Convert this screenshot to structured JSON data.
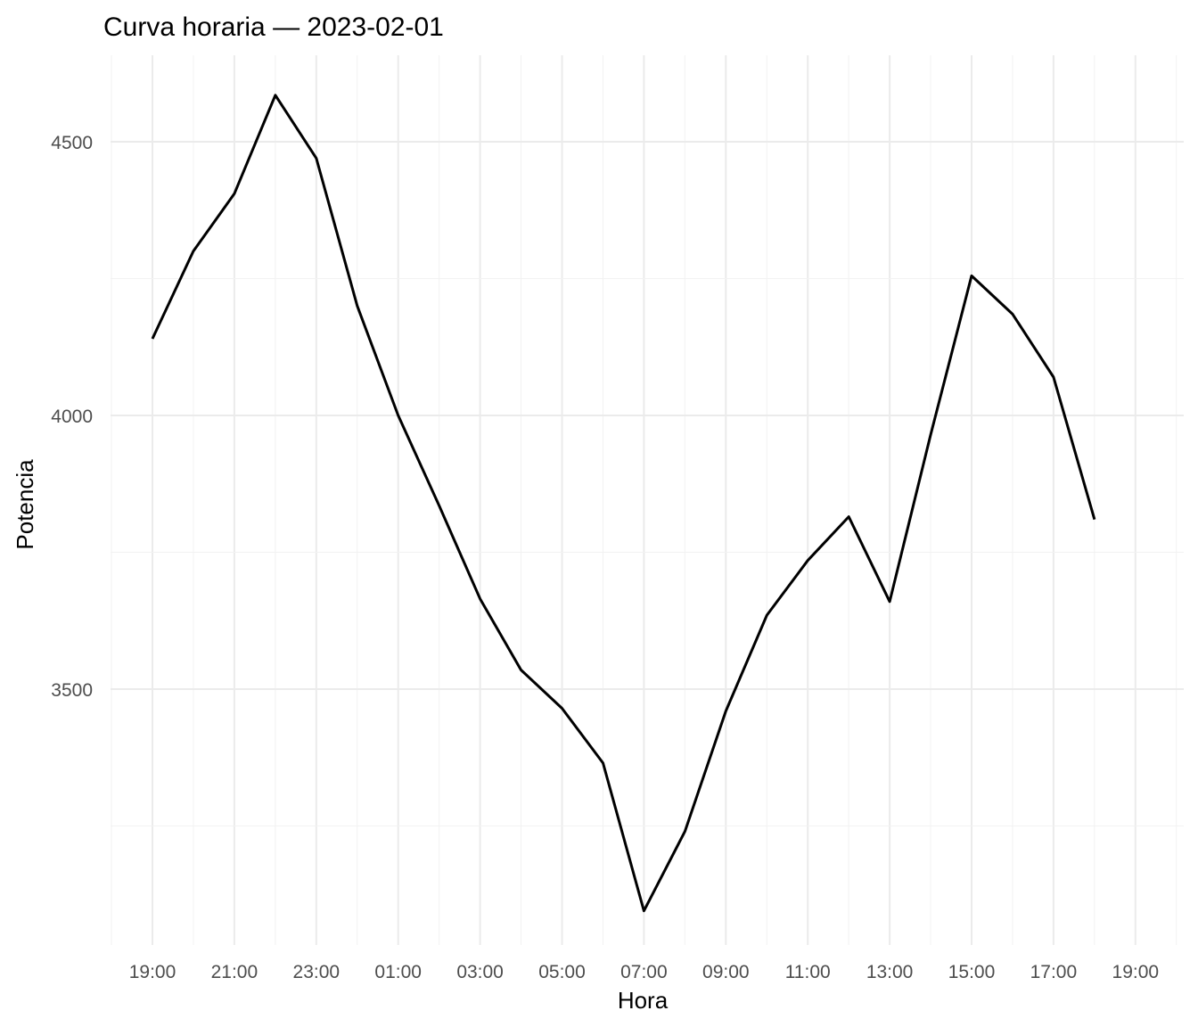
{
  "chart_data": {
    "type": "line",
    "title": "Curva horaria — 2023-02-01",
    "xlabel": "Hora",
    "ylabel": "Potencia",
    "x": [
      "19:00",
      "20:00",
      "21:00",
      "22:00",
      "23:00",
      "00:00",
      "01:00",
      "02:00",
      "03:00",
      "04:00",
      "05:00",
      "06:00",
      "07:00",
      "08:00",
      "09:00",
      "10:00",
      "11:00",
      "12:00",
      "13:00",
      "14:00",
      "15:00",
      "16:00",
      "17:00",
      "18:00"
    ],
    "x_ticks": [
      "19:00",
      "21:00",
      "23:00",
      "01:00",
      "03:00",
      "05:00",
      "07:00",
      "09:00",
      "11:00",
      "13:00",
      "15:00",
      "17:00",
      "19:00"
    ],
    "y_ticks": [
      3500,
      4000,
      4500
    ],
    "ylim": [
      3140,
      4660
    ],
    "grid": true,
    "series": [
      {
        "values": [
          4140,
          4300,
          4405,
          4585,
          4470,
          4200,
          4000,
          3835,
          3665,
          3535,
          3465,
          3365,
          3095,
          3240,
          3460,
          3635,
          3735,
          3815,
          3660,
          3965,
          4255,
          4185,
          4070,
          3810
        ],
        "color": "#000000"
      }
    ]
  }
}
